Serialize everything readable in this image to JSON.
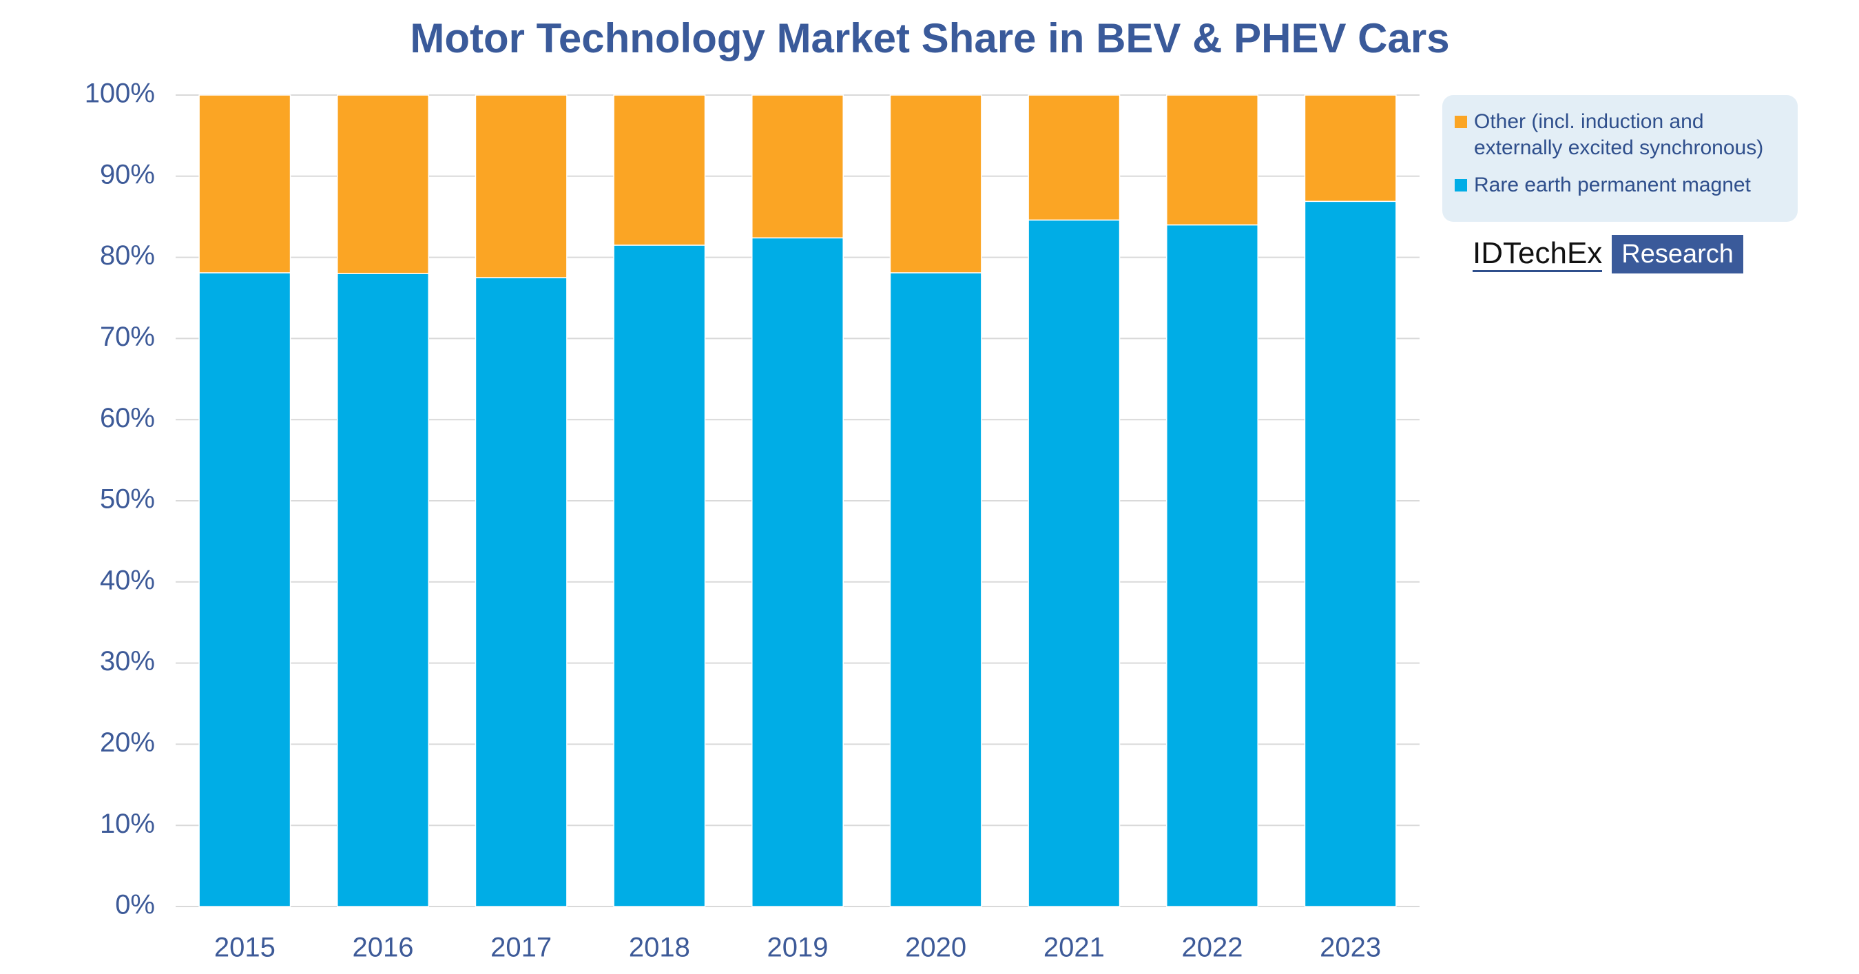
{
  "chart_data": {
    "type": "stacked_bar",
    "title": "Motor Technology Market Share in BEV & PHEV Cars",
    "categories": [
      "2015",
      "2016",
      "2017",
      "2018",
      "2019",
      "2020",
      "2021",
      "2022",
      "2023"
    ],
    "series": [
      {
        "name": "Other (incl. induction and externally excited synchronous)",
        "color": "#fba524",
        "values": [
          21.9,
          22.0,
          22.5,
          18.5,
          17.6,
          21.9,
          15.4,
          16.0,
          13.1
        ]
      },
      {
        "name": "Rare earth permanent magnet",
        "color": "#00ade6",
        "values": [
          78.1,
          78.0,
          77.5,
          81.5,
          82.4,
          78.1,
          84.6,
          84.0,
          86.9
        ]
      }
    ],
    "ylim": [
      0,
      100
    ],
    "yticks": [
      {
        "value": 0,
        "label": "0%"
      },
      {
        "value": 10,
        "label": "10%"
      },
      {
        "value": 20,
        "label": "20%"
      },
      {
        "value": 30,
        "label": "30%"
      },
      {
        "value": 40,
        "label": "40%"
      },
      {
        "value": 50,
        "label": "50%"
      },
      {
        "value": 60,
        "label": "60%"
      },
      {
        "value": 70,
        "label": "70%"
      },
      {
        "value": 80,
        "label": "80%"
      },
      {
        "value": 90,
        "label": "90%"
      },
      {
        "value": 100,
        "label": "100%"
      }
    ],
    "grid": true,
    "legend": "right",
    "logo": {
      "brand": "IDTechEx",
      "suffix": "Research"
    }
  }
}
